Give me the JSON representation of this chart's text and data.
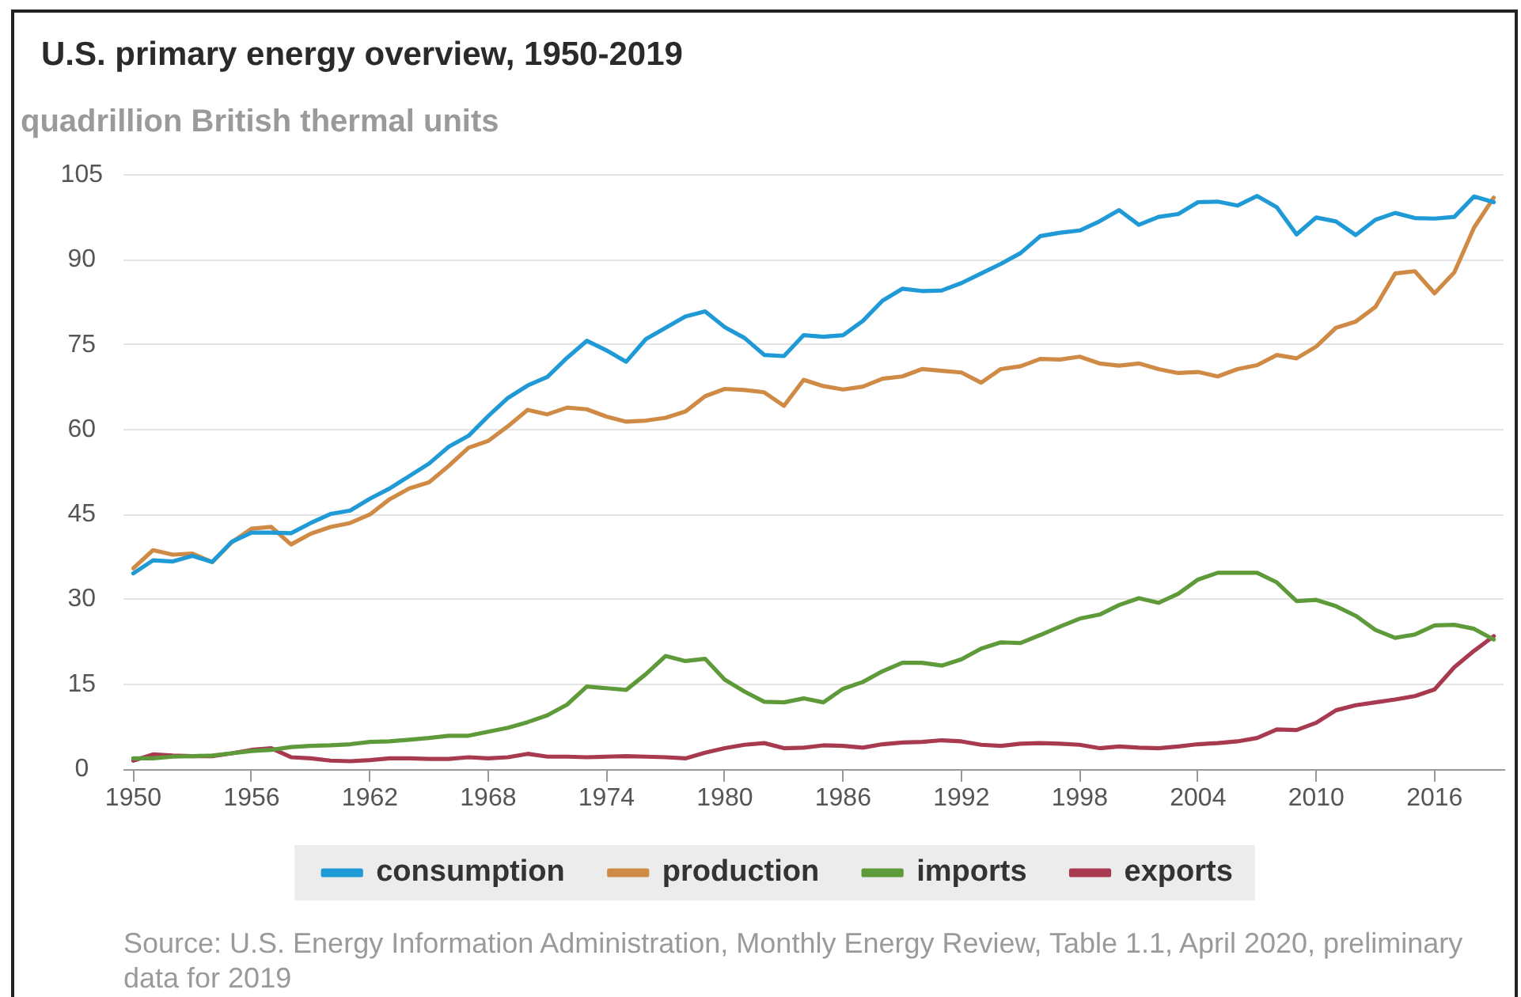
{
  "chart_data": {
    "type": "line",
    "title": "U.S. primary energy overview, 1950-2019",
    "ylabel": "quadrillion British thermal units",
    "x": [
      1950,
      1951,
      1952,
      1953,
      1954,
      1955,
      1956,
      1957,
      1958,
      1959,
      1960,
      1961,
      1962,
      1963,
      1964,
      1965,
      1966,
      1967,
      1968,
      1969,
      1970,
      1971,
      1972,
      1973,
      1974,
      1975,
      1976,
      1977,
      1978,
      1979,
      1980,
      1981,
      1982,
      1983,
      1984,
      1985,
      1986,
      1987,
      1988,
      1989,
      1990,
      1991,
      1992,
      1993,
      1994,
      1995,
      1996,
      1997,
      1998,
      1999,
      2000,
      2001,
      2002,
      2003,
      2004,
      2005,
      2006,
      2007,
      2008,
      2009,
      2010,
      2011,
      2012,
      2013,
      2014,
      2015,
      2016,
      2017,
      2018,
      2019
    ],
    "xlim": [
      1949.5,
      2019.5
    ],
    "xticks": [
      1950,
      1956,
      1962,
      1968,
      1974,
      1980,
      1986,
      1992,
      1998,
      2004,
      2010,
      2016
    ],
    "ylim": [
      0,
      105
    ],
    "yticks": [
      0,
      15,
      30,
      45,
      60,
      75,
      90,
      105
    ],
    "grid": "y",
    "legend": "bottom",
    "marker": "none",
    "line_style": "solid",
    "series": [
      {
        "name": "consumption",
        "color": "#1f9ad6",
        "values": [
          34.6,
          36.9,
          36.7,
          37.7,
          36.6,
          40.2,
          41.8,
          41.8,
          41.7,
          43.5,
          45.1,
          45.7,
          47.8,
          49.6,
          51.8,
          54.0,
          57.0,
          58.9,
          62.4,
          65.6,
          67.8,
          69.3,
          72.7,
          75.7,
          74.0,
          72.0,
          76.0,
          78.0,
          80.0,
          80.9,
          78.1,
          76.2,
          73.2,
          73.0,
          76.7,
          76.4,
          76.7,
          79.2,
          82.8,
          84.9,
          84.5,
          84.6,
          85.9,
          87.6,
          89.3,
          91.2,
          94.2,
          94.8,
          95.2,
          96.8,
          98.8,
          96.2,
          97.6,
          98.1,
          100.2,
          100.3,
          99.6,
          101.3,
          99.3,
          94.5,
          97.5,
          96.8,
          94.4,
          97.1,
          98.3,
          97.4,
          97.3,
          97.6,
          101.2,
          100.2
        ]
      },
      {
        "name": "production",
        "color": "#cf8a46",
        "values": [
          35.5,
          38.7,
          37.9,
          38.1,
          36.6,
          40.1,
          42.5,
          42.8,
          39.7,
          41.6,
          42.8,
          43.5,
          45.0,
          47.7,
          49.6,
          50.7,
          53.6,
          56.8,
          58.0,
          60.6,
          63.5,
          62.7,
          63.9,
          63.6,
          62.3,
          61.4,
          61.6,
          62.1,
          63.2,
          65.9,
          67.2,
          67.0,
          66.6,
          64.2,
          68.8,
          67.7,
          67.1,
          67.6,
          69.0,
          69.4,
          70.7,
          70.4,
          70.1,
          68.3,
          70.7,
          71.2,
          72.5,
          72.4,
          72.9,
          71.7,
          71.3,
          71.7,
          70.7,
          70.0,
          70.2,
          69.4,
          70.7,
          71.4,
          73.2,
          72.6,
          74.7,
          78.0,
          79.1,
          81.7,
          87.6,
          88.0,
          84.1,
          87.8,
          95.7,
          101.0
        ]
      },
      {
        "name": "imports",
        "color": "#5e9a3a",
        "values": [
          1.9,
          1.9,
          2.2,
          2.3,
          2.4,
          2.8,
          3.2,
          3.4,
          3.9,
          4.1,
          4.2,
          4.4,
          4.8,
          4.9,
          5.2,
          5.5,
          5.9,
          5.9,
          6.6,
          7.3,
          8.3,
          9.5,
          11.4,
          14.6,
          14.3,
          14.0,
          16.8,
          20.0,
          19.1,
          19.5,
          15.8,
          13.7,
          11.9,
          11.8,
          12.5,
          11.8,
          14.2,
          15.4,
          17.3,
          18.8,
          18.8,
          18.3,
          19.4,
          21.3,
          22.4,
          22.3,
          23.7,
          25.2,
          26.6,
          27.3,
          29.0,
          30.2,
          29.4,
          31.0,
          33.5,
          34.7,
          34.7,
          34.7,
          33.0,
          29.7,
          29.9,
          28.8,
          27.1,
          24.6,
          23.2,
          23.8,
          25.4,
          25.5,
          24.8,
          22.9
        ]
      },
      {
        "name": "exports",
        "color": "#a83a4f",
        "values": [
          1.5,
          2.6,
          2.4,
          2.3,
          2.3,
          2.8,
          3.4,
          3.7,
          2.1,
          1.9,
          1.5,
          1.4,
          1.6,
          1.9,
          1.9,
          1.8,
          1.8,
          2.1,
          1.9,
          2.1,
          2.7,
          2.2,
          2.2,
          2.1,
          2.2,
          2.3,
          2.2,
          2.1,
          1.9,
          2.9,
          3.7,
          4.3,
          4.6,
          3.7,
          3.8,
          4.2,
          4.1,
          3.8,
          4.4,
          4.7,
          4.8,
          5.1,
          4.9,
          4.3,
          4.1,
          4.5,
          4.6,
          4.5,
          4.3,
          3.7,
          4.0,
          3.8,
          3.7,
          4.0,
          4.4,
          4.6,
          4.9,
          5.5,
          7.0,
          6.9,
          8.2,
          10.4,
          11.3,
          11.8,
          12.3,
          12.9,
          14.1,
          18.0,
          20.9,
          23.5
        ]
      }
    ],
    "annotations": [
      "Source: U.S. Energy Information Administration, Monthly Energy Review, Table 1.1, April 2020, preliminary data for 2019"
    ]
  }
}
